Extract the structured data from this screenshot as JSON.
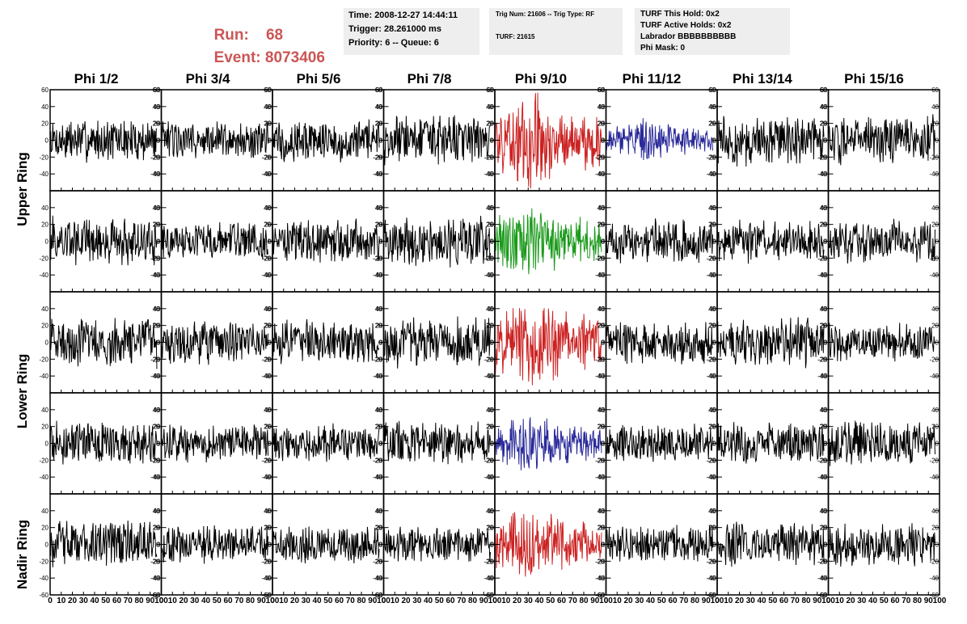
{
  "run": {
    "label": "Run:",
    "value": "68"
  },
  "event": {
    "label": "Event:",
    "value": "8073406"
  },
  "info1": [
    "Time: 2008-12-27 14:44:11",
    "Trigger: 28.261000 ms",
    "Priority: 6 -- Queue: 6"
  ],
  "info2": [
    "Trig Num: 21606 -- Trig Type: RF",
    "",
    "TURF: 21615"
  ],
  "info3": [
    "TURF This Hold: 0x2",
    "TURF Active Holds: 0x2",
    "Labrador BBBBBBBBBB",
    "Phi Mask: 0"
  ],
  "columns": [
    "Phi 1/2",
    "Phi 3/4",
    "Phi 5/6",
    "Phi 7/8",
    "Phi 9/10",
    "Phi 11/12",
    "Phi 13/14",
    "Phi 15/16"
  ],
  "rings": [
    "Upper Ring",
    "Lower Ring",
    "Nadir Ring"
  ],
  "colors": {
    "default": "#000000",
    "red": "#cc2222",
    "blue": "#2a2a9a",
    "green": "#1a9a1a",
    "run_text": "#cc5555"
  },
  "chart_data": {
    "type": "line",
    "rows": 5,
    "cols": 8,
    "xlim": [
      0,
      100
    ],
    "ylim": [
      -60,
      60
    ],
    "x_ticks": [
      "0",
      "10",
      "20",
      "30",
      "40",
      "50",
      "60",
      "70",
      "80",
      "90",
      "100"
    ],
    "y_ticks": [
      "60",
      "40",
      "20",
      "0",
      "-20",
      "-40",
      "-60"
    ],
    "panel_amplitude": [
      [
        14,
        12,
        14,
        16,
        26,
        12,
        16,
        16
      ],
      [
        16,
        12,
        14,
        16,
        20,
        14,
        14,
        14
      ],
      [
        16,
        14,
        14,
        16,
        26,
        14,
        16,
        12
      ],
      [
        14,
        12,
        12,
        14,
        16,
        12,
        14,
        14
      ],
      [
        16,
        12,
        12,
        12,
        20,
        12,
        14,
        14
      ]
    ],
    "panel_color": [
      [
        "default",
        "default",
        "default",
        "default",
        "red",
        "blue",
        "default",
        "default"
      ],
      [
        "default",
        "default",
        "default",
        "default",
        "green",
        "default",
        "default",
        "default"
      ],
      [
        "default",
        "default",
        "default",
        "default",
        "red",
        "default",
        "default",
        "default"
      ],
      [
        "default",
        "default",
        "default",
        "default",
        "blue",
        "default",
        "default",
        "default"
      ],
      [
        "default",
        "default",
        "default",
        "default",
        "red",
        "default",
        "default",
        "default"
      ]
    ]
  }
}
